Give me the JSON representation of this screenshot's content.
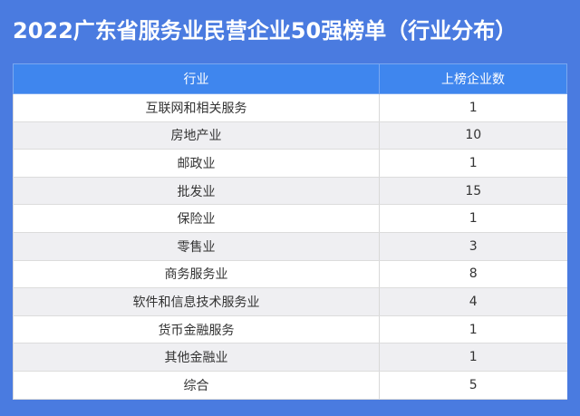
{
  "title": "2022广东省服务业民营企业50强榜单（行业分布）",
  "colors": {
    "background": "#4a7be0",
    "header": "#3f86ee",
    "row_alt": "#efeff2"
  },
  "table": {
    "headers": [
      "行业",
      "上榜企业数"
    ],
    "rows": [
      [
        "互联网和相关服务",
        "1"
      ],
      [
        "房地产业",
        "10"
      ],
      [
        "邮政业",
        "1"
      ],
      [
        "批发业",
        "15"
      ],
      [
        "保险业",
        "1"
      ],
      [
        "零售业",
        "3"
      ],
      [
        "商务服务业",
        "8"
      ],
      [
        "软件和信息技术服务业",
        "4"
      ],
      [
        "货币金融服务",
        "1"
      ],
      [
        "其他金融业",
        "1"
      ],
      [
        "综合",
        "5"
      ]
    ]
  }
}
